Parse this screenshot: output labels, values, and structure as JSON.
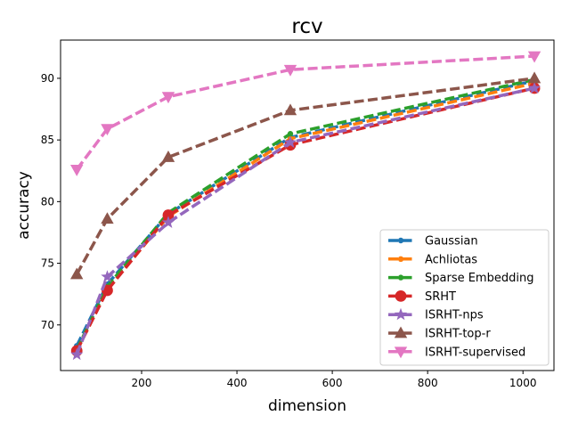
{
  "chart_data": {
    "type": "line",
    "title": "rcv",
    "xlabel": "dimension",
    "ylabel": "accuracy",
    "xlim": [
      30,
      1065
    ],
    "ylim": [
      66.3,
      93.1
    ],
    "xticks": [
      200,
      400,
      600,
      800,
      1000
    ],
    "yticks": [
      70,
      75,
      80,
      85,
      90
    ],
    "grid": false,
    "legend_position": "lower-right",
    "x": [
      64,
      128,
      256,
      512,
      1024
    ],
    "series": [
      {
        "name": "Gaussian",
        "color": "#1f77b4",
        "marker": "circle-small",
        "values": [
          68.3,
          73.3,
          79.0,
          85.2,
          89.8
        ]
      },
      {
        "name": "Achliotas",
        "color": "#ff7f0e",
        "marker": "circle-small",
        "values": [
          67.9,
          72.9,
          78.8,
          85.1,
          89.6
        ]
      },
      {
        "name": "Sparse Embedding",
        "color": "#2ca02c",
        "marker": "circle-small",
        "values": [
          68.0,
          73.1,
          79.1,
          85.5,
          89.9
        ]
      },
      {
        "name": "SRHT",
        "color": "#d62728",
        "marker": "circle-large",
        "values": [
          67.9,
          72.8,
          78.9,
          84.6,
          89.2
        ]
      },
      {
        "name": "ISRHT-nps",
        "color": "#9467bd",
        "marker": "star",
        "values": [
          67.6,
          73.9,
          78.3,
          84.8,
          89.2
        ]
      },
      {
        "name": "ISRHT-top-r",
        "color": "#8c564b",
        "marker": "triangle-up",
        "values": [
          74.1,
          78.6,
          83.6,
          87.4,
          90.0
        ]
      },
      {
        "name": "ISRHT-supervised",
        "color": "#e377c2",
        "marker": "triangle-down",
        "values": [
          82.6,
          85.9,
          88.5,
          90.7,
          91.8
        ]
      }
    ]
  }
}
